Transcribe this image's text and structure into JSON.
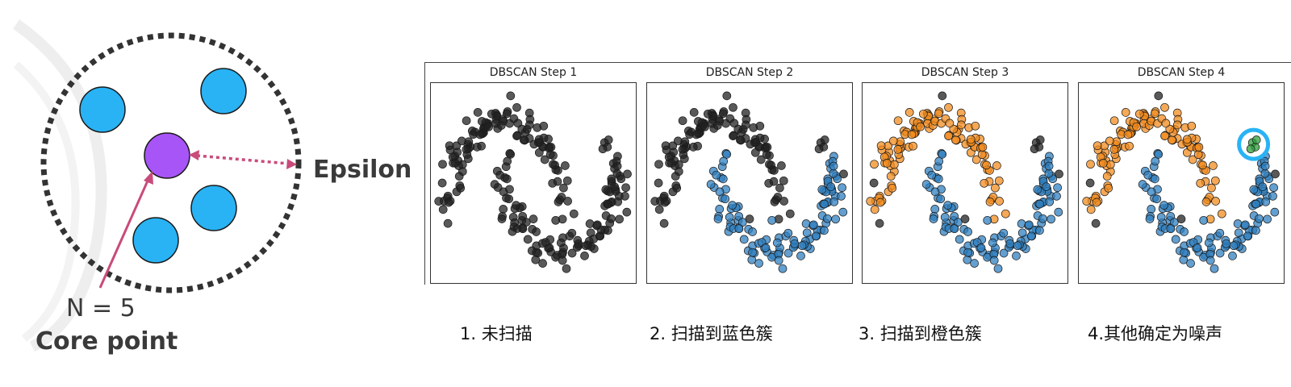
{
  "diagram": {
    "label_epsilon": "Epsilon",
    "label_n": "N = 5",
    "label_core": "Core point",
    "colors": {
      "neighbor": "#29b3f5",
      "core": "#a855f7",
      "arrow": "#c94b7b",
      "circle": "#333333"
    }
  },
  "panels": [
    {
      "title": "DBSCAN Step 1",
      "caption": "1. 未扫描"
    },
    {
      "title": "DBSCAN Step 2",
      "caption": "2. 扫描到蓝色簇"
    },
    {
      "title": "DBSCAN Step 3",
      "caption": "3. 扫描到橙色簇"
    },
    {
      "title": "DBSCAN Step 4",
      "caption": "4.其他确定为噪声"
    }
  ],
  "colors": {
    "unscanned": "#222222",
    "blue_cluster": "#2f7fbf",
    "orange_cluster": "#f28c1f",
    "noise": "#222222",
    "highlight_cluster": "#2e9e3a",
    "highlight_ring": "#29b3f5"
  }
}
